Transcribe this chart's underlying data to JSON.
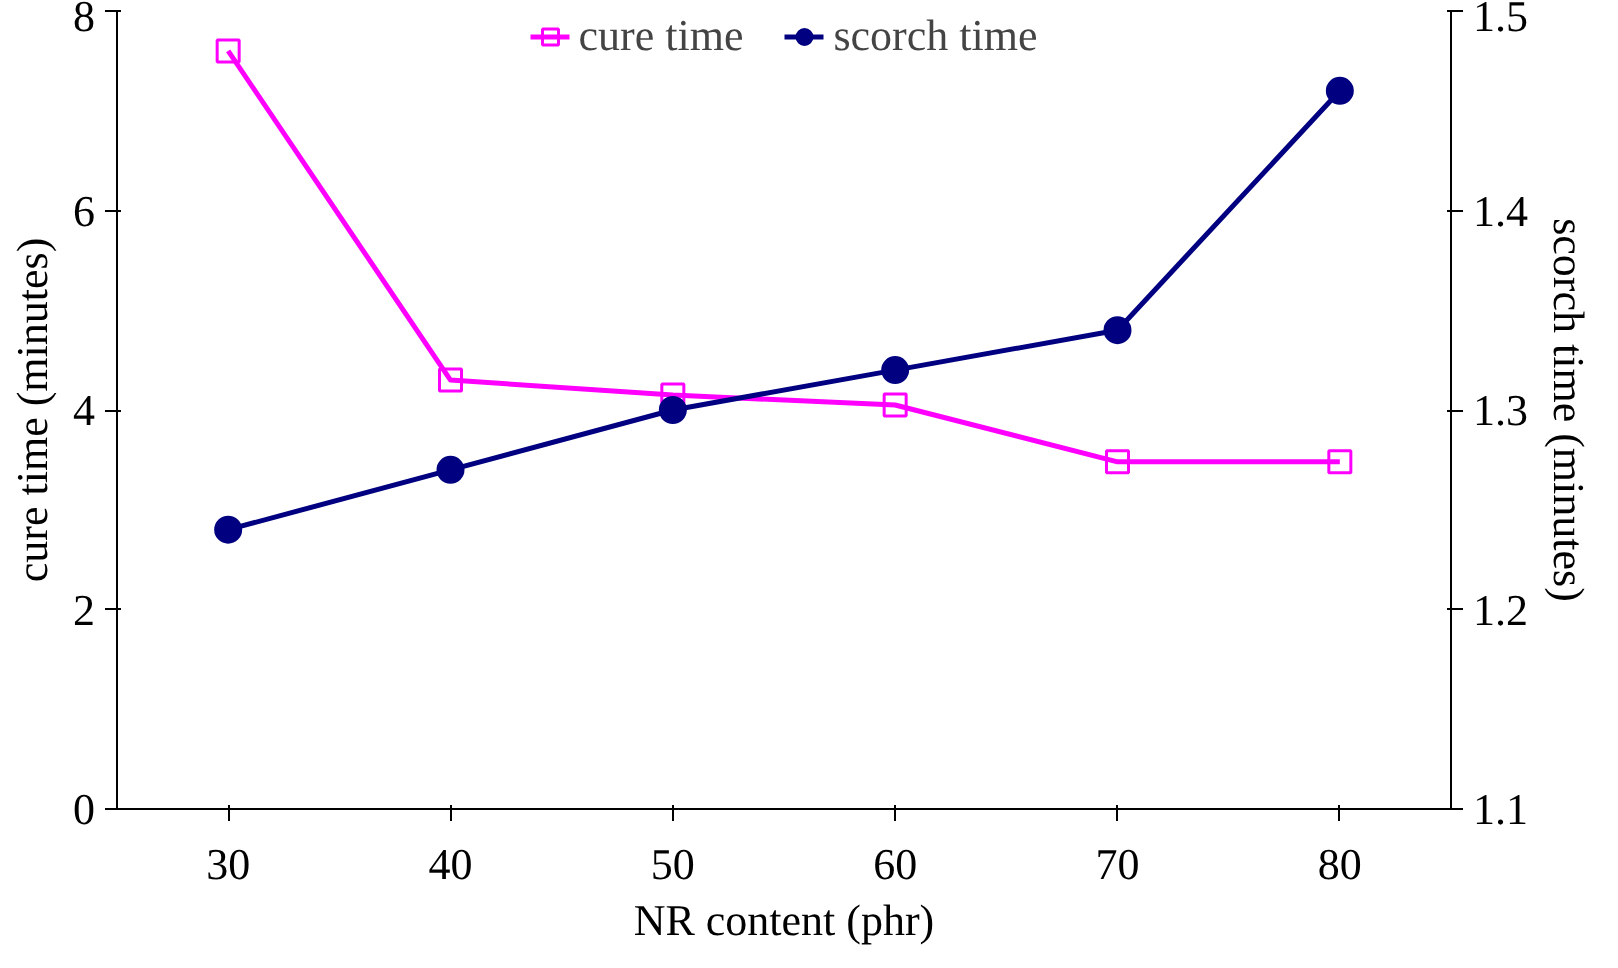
{
  "chart_data": {
    "type": "line",
    "xlabel": "NR content (phr)",
    "ylabel": "cure time (minutes)",
    "y2label": "scorch time (minutes)",
    "categories": [
      "30",
      "40",
      "50",
      "60",
      "70",
      "80"
    ],
    "series": [
      {
        "name": "cure time",
        "color": "#ff00ff",
        "marker": "square",
        "values": [
          7.6,
          4.3,
          4.15,
          4.05,
          3.48,
          3.48
        ]
      },
      {
        "name": "scorch time",
        "color": "#000080",
        "marker": "circle",
        "axis": "y2",
        "values": [
          1.24,
          1.27,
          1.3,
          1.32,
          1.34,
          1.46
        ]
      }
    ],
    "ylim": [
      0,
      8
    ],
    "yticks": [
      0,
      2,
      4,
      6,
      8
    ],
    "y2lim": [
      1.1,
      1.5
    ],
    "y2ticks": [
      1.1,
      1.2,
      1.3,
      1.4,
      1.5
    ],
    "legend": "top",
    "grid": false,
    "line_style": "solid"
  }
}
